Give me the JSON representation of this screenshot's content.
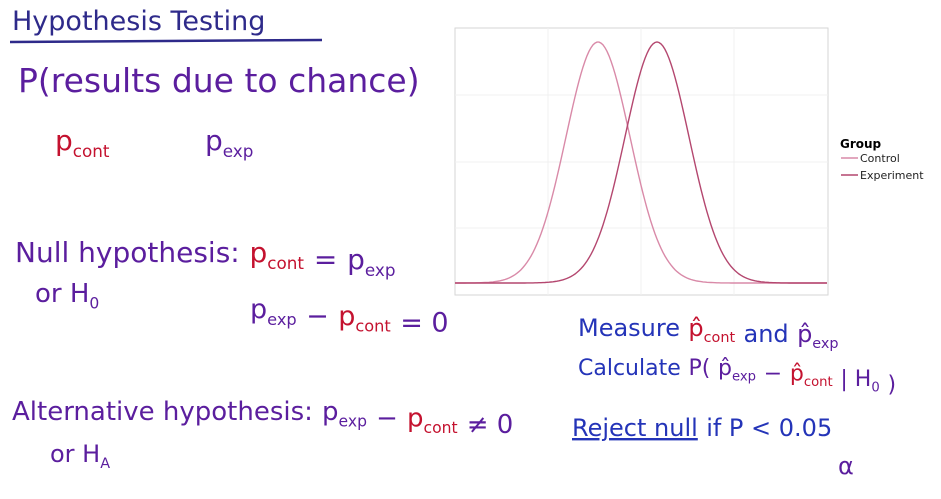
{
  "lines": [
    [
      {
        "text": "Hypothesis Testing",
        "color": "#2e2a8a"
      }
    ],
    [
      {
        "text": "P(results due to chance)",
        "color": "#5b1e9e"
      }
    ],
    [
      {
        "text": "p",
        "sub": "cont",
        "color": "#c4122f"
      }
    ],
    [
      {
        "text": "p",
        "sub": "exp",
        "color": "#5b1e9e"
      }
    ],
    [
      {
        "text": "Null hypothesis:",
        "color": "#5b1e9e"
      },
      {
        "text": "p",
        "sub": "cont",
        "color": "#c4122f"
      },
      {
        "text": "=",
        "color": "#5b1e9e"
      },
      {
        "text": "p",
        "sub": "exp",
        "color": "#5b1e9e"
      }
    ],
    [
      {
        "text": "or H",
        "sub": "0",
        "color": "#5b1e9e"
      }
    ],
    [
      {
        "text": "p",
        "sub": "exp",
        "color": "#5b1e9e"
      },
      {
        "text": "−",
        "color": "#5b1e9e"
      },
      {
        "text": "p",
        "sub": "cont",
        "color": "#c4122f"
      },
      {
        "text": "= 0",
        "color": "#5b1e9e"
      }
    ],
    [
      {
        "text": "Measure",
        "color": "#2434b8"
      },
      {
        "text": "p̂",
        "sub": "cont",
        "color": "#c4122f"
      },
      {
        "text": "and",
        "color": "#2434b8"
      },
      {
        "text": "p̂",
        "sub": "exp",
        "color": "#5b1e9e"
      }
    ],
    [
      {
        "text": "Calculate",
        "color": "#2434b8"
      },
      {
        "text": "P(",
        "color": "#5b1e9e"
      },
      {
        "text": "p̂",
        "sub": "exp",
        "color": "#5b1e9e"
      },
      {
        "text": "−",
        "color": "#5b1e9e"
      },
      {
        "text": "p̂",
        "sub": "cont",
        "color": "#c4122f"
      },
      {
        "text": "| H",
        "sub": "0",
        "color": "#5b1e9e"
      },
      {
        "text": ")",
        "color": "#5b1e9e"
      }
    ],
    [
      {
        "text": "Alternative hypothesis:",
        "color": "#5b1e9e"
      },
      {
        "text": "p",
        "sub": "exp",
        "color": "#5b1e9e"
      },
      {
        "text": "−",
        "color": "#5b1e9e"
      },
      {
        "text": "p",
        "sub": "cont",
        "color": "#c4122f"
      },
      {
        "text": "≠ 0",
        "color": "#5b1e9e"
      }
    ],
    [
      {
        "text": "or H",
        "sub": "A",
        "color": "#5b1e9e"
      }
    ],
    [
      {
        "text": "Reject null",
        "color": "#2434b8",
        "underline": true
      },
      {
        "text": "if P < 0.05",
        "color": "#2434b8"
      }
    ],
    [
      {
        "text": "α",
        "color": "#5b1e9e"
      }
    ]
  ],
  "chart": {
    "legend_title": "Group",
    "series": [
      {
        "name": "Control",
        "color": "#d98aa8"
      },
      {
        "name": "Experiment",
        "color": "#b4476f"
      }
    ]
  }
}
